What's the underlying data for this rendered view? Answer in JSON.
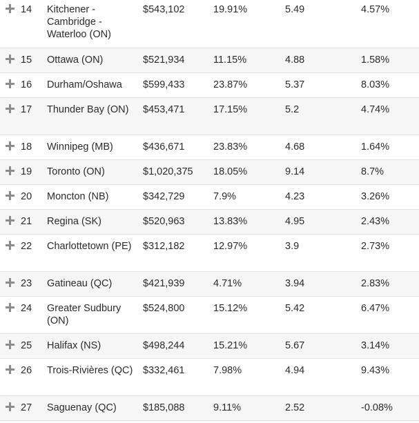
{
  "rows": [
    {
      "rank": "14",
      "city": "Kitchener - Cambridge - Waterloo (ON)",
      "price": "$543,102",
      "change": "19.91%",
      "ratio": "5.49",
      "income": "4.57%"
    },
    {
      "rank": "15",
      "city": "Ottawa (ON)",
      "price": "$521,934",
      "change": "11.15%",
      "ratio": "4.88",
      "income": "1.58%"
    },
    {
      "rank": "16",
      "city": "Durham/Oshawa",
      "price": "$599,433",
      "change": "23.87%",
      "ratio": "5.37",
      "income": "8.03%"
    },
    {
      "rank": "17",
      "city": "Thunder Bay (ON)",
      "price": "$453,471",
      "change": "17.15%",
      "ratio": "5.2",
      "income": "4.74%"
    },
    {
      "rank": "18",
      "city": "Winnipeg (MB)",
      "price": "$436,671",
      "change": "23.83%",
      "ratio": "4.68",
      "income": "1.64%"
    },
    {
      "rank": "19",
      "city": "Toronto (ON)",
      "price": "$1,020,375",
      "change": "18.05%",
      "ratio": "9.14",
      "income": "8.7%"
    },
    {
      "rank": "20",
      "city": "Moncton (NB)",
      "price": "$342,729",
      "change": "7.9%",
      "ratio": "4.23",
      "income": "3.26%"
    },
    {
      "rank": "21",
      "city": "Regina (SK)",
      "price": "$520,963",
      "change": "13.83%",
      "ratio": "4.95",
      "income": "2.43%"
    },
    {
      "rank": "22",
      "city": "Charlottetown (PE)",
      "price": "$312,182",
      "change": "12.97%",
      "ratio": "3.9",
      "income": "2.73%"
    },
    {
      "rank": "23",
      "city": "Gatineau (QC)",
      "price": "$421,939",
      "change": "4.71%",
      "ratio": "3.94",
      "income": "2.83%"
    },
    {
      "rank": "24",
      "city": "Greater Sudbury (ON)",
      "price": "$524,800",
      "change": "15.12%",
      "ratio": "5.42",
      "income": "6.47%"
    },
    {
      "rank": "25",
      "city": "Halifax (NS)",
      "price": "$498,244",
      "change": "15.21%",
      "ratio": "5.67",
      "income": "3.14%"
    },
    {
      "rank": "26",
      "city": "Trois-Rivières (QC)",
      "price": "$332,461",
      "change": "7.98%",
      "ratio": "4.94",
      "income": "9.43%"
    },
    {
      "rank": "27",
      "city": "Saguenay (QC)",
      "price": "$185,088",
      "change": "9.11%",
      "ratio": "2.52",
      "income": "-0.08%"
    }
  ]
}
